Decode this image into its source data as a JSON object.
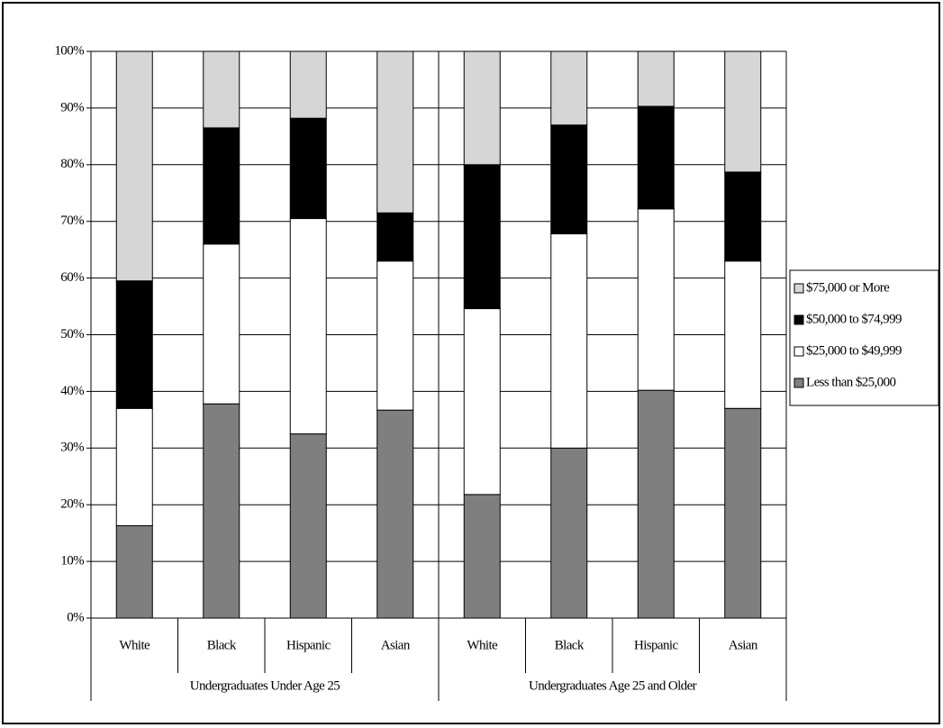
{
  "chart_data": {
    "type": "stacked_bar",
    "categories": [
      "White",
      "Black",
      "Hispanic",
      "Asian",
      "White",
      "Black",
      "Hispanic",
      "Asian"
    ],
    "groups": [
      "Undergraduates Under Age 25",
      "Undergraduates Age 25 and Older"
    ],
    "series": [
      {
        "name": "Less than $25,000",
        "color": "#7f7f7f",
        "values": [
          16.3,
          37.8,
          32.5,
          36.7,
          21.8,
          30.0,
          40.2,
          37.0
        ]
      },
      {
        "name": "$25,000 to $49,999",
        "color": "#ffffff",
        "values": [
          20.7,
          28.2,
          38.0,
          26.3,
          32.8,
          37.8,
          32.0,
          26.0
        ]
      },
      {
        "name": "$50,000 to $74,999",
        "color": "#000000",
        "values": [
          22.5,
          20.5,
          17.7,
          8.5,
          25.4,
          19.2,
          18.1,
          15.7
        ]
      },
      {
        "name": "$75,000 or More",
        "color": "#d6d6d6",
        "values": [
          40.5,
          13.5,
          11.8,
          28.5,
          20.0,
          13.0,
          9.7,
          21.3
        ]
      }
    ],
    "ylim": [
      0,
      100
    ],
    "yticks": [
      {
        "value": 0,
        "label": "0%"
      },
      {
        "value": 10,
        "label": "10%"
      },
      {
        "value": 20,
        "label": "20%"
      },
      {
        "value": 30,
        "label": "30%"
      },
      {
        "value": 40,
        "label": "40%"
      },
      {
        "value": 50,
        "label": "50%"
      },
      {
        "value": 60,
        "label": "60%"
      },
      {
        "value": 70,
        "label": "70%"
      },
      {
        "value": 80,
        "label": "80%"
      },
      {
        "value": 90,
        "label": "90%"
      },
      {
        "value": 100,
        "label": "100%"
      }
    ],
    "grid": true,
    "legend": "right"
  }
}
